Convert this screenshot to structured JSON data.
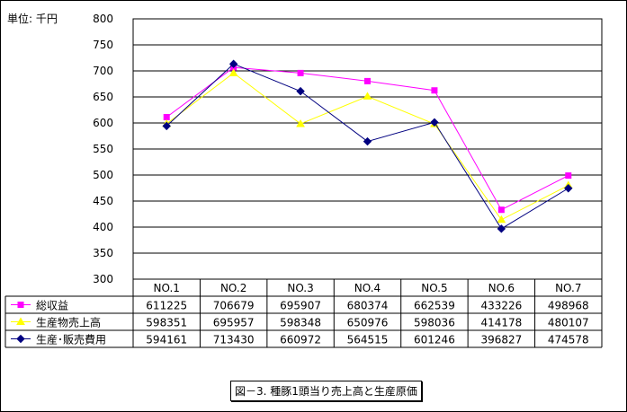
{
  "unit_label": "単位: 千円",
  "caption": "図－3. 種豚1頭当り売上高と生産原価",
  "chart_data": {
    "type": "line",
    "ylim": [
      300,
      800
    ],
    "yticks": [
      300,
      350,
      400,
      450,
      500,
      550,
      600,
      650,
      700,
      750,
      800
    ],
    "grid": true,
    "legend": "data table (left of rows)",
    "categories": [
      "NO.1",
      "NO.2",
      "NO.3",
      "NO.4",
      "NO.5",
      "NO.6",
      "NO.7"
    ],
    "series": [
      {
        "name": "総収益",
        "color": "#ff00ff",
        "marker": "square",
        "values": [
          611.225,
          706.679,
          695.907,
          680.374,
          662.539,
          433.226,
          498.968
        ],
        "table": [
          "611225",
          "706679",
          "695907",
          "680374",
          "662539",
          "433226",
          "498968"
        ]
      },
      {
        "name": "生産物売上高",
        "color": "#ffff00",
        "marker": "triangle",
        "values": [
          598.351,
          695.957,
          598.348,
          650.976,
          598.036,
          414.178,
          480.107
        ],
        "table": [
          "598351",
          "695957",
          "598348",
          "650976",
          "598036",
          "414178",
          "480107"
        ]
      },
      {
        "name": "生産･販売費用",
        "color": "#000080",
        "marker": "diamond",
        "values": [
          594.161,
          713.43,
          660.972,
          564.515,
          601.246,
          396.827,
          474.578
        ],
        "table": [
          "594161",
          "713430",
          "660972",
          "564515",
          "601246",
          "396827",
          "474578"
        ]
      }
    ]
  }
}
